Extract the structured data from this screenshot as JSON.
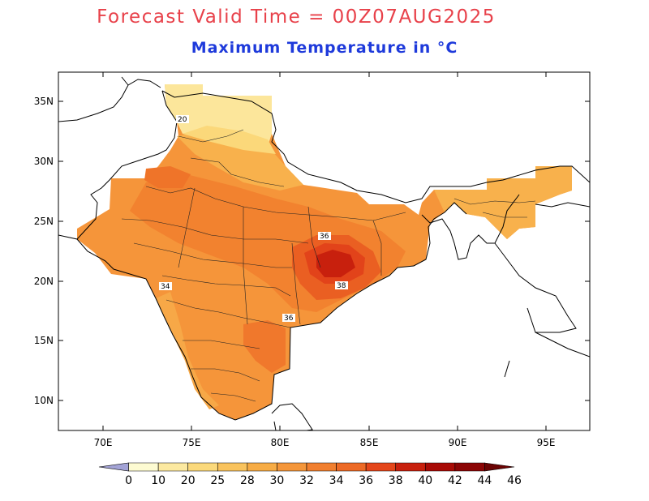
{
  "title": "Forecast Valid Time = 00Z07AUG2025",
  "subtitle": "Maximum Temperature in °C",
  "map": {
    "lon_range": [
      67.0,
      97.5
    ],
    "lat_range": [
      7.5,
      37.5
    ],
    "x_ticks": [
      "70E",
      "75E",
      "80E",
      "85E",
      "90E",
      "95E"
    ],
    "y_ticks": [
      "35N",
      "30N",
      "25N",
      "20N",
      "15N",
      "10N"
    ],
    "contour_labels": [
      "20",
      "36",
      "38",
      "34",
      "36"
    ]
  },
  "colorbar": {
    "labels": [
      "0",
      "10",
      "20",
      "25",
      "28",
      "30",
      "32",
      "34",
      "36",
      "38",
      "40",
      "42",
      "44",
      "46"
    ],
    "colors": [
      "#a3a3d6",
      "#fdfbd2",
      "#fce9a0",
      "#fbd97b",
      "#f9c35d",
      "#f7ac45",
      "#f4963a",
      "#f17f2f",
      "#ed6a26",
      "#e4461a",
      "#c8200d",
      "#a80b06",
      "#8b0505",
      "#6b0303"
    ]
  }
}
